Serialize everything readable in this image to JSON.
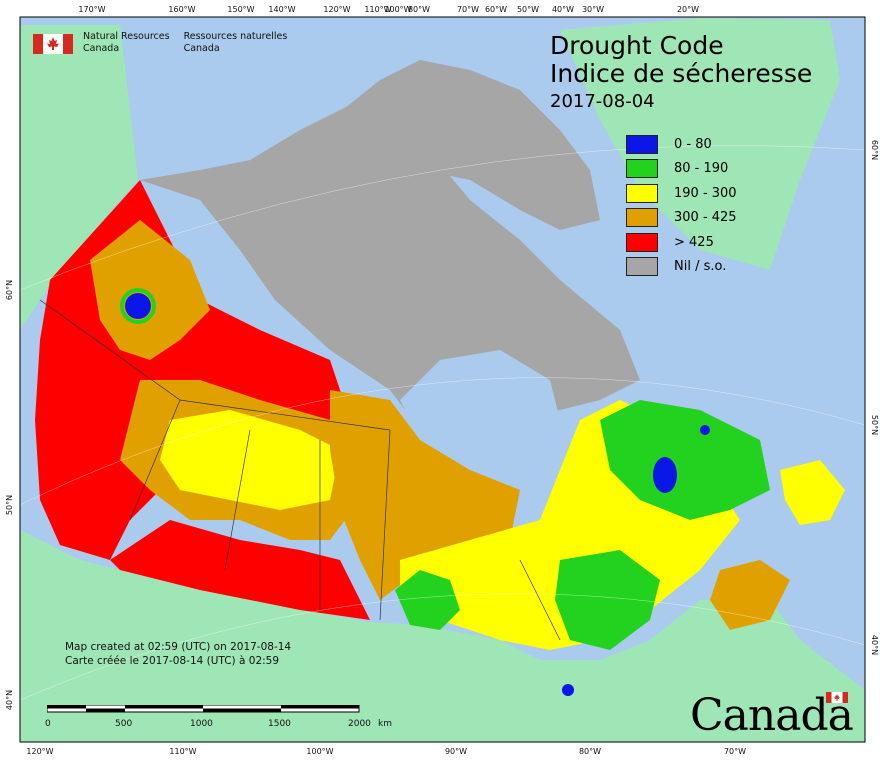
{
  "title": {
    "line1": "Drought Code",
    "line2": "Indice de sécheresse",
    "date": "2017-08-04"
  },
  "legend": [
    {
      "label": "0 - 80",
      "color": "#0a17e6"
    },
    {
      "label": "80 - 190",
      "color": "#22d21e"
    },
    {
      "label": "190 - 300",
      "color": "#ffff00"
    },
    {
      "label": "300 - 425",
      "color": "#e0a000"
    },
    {
      "label": "> 425",
      "color": "#ff0000"
    },
    {
      "label": "Nil / s.o.",
      "color": "#a6a6a6"
    }
  ],
  "agency": {
    "en_line1": "Natural Resources",
    "en_line2": "Canada",
    "fr_line1": "Ressources naturelles",
    "fr_line2": "Canada"
  },
  "credit": {
    "en": "Map created at 02:59 (UTC) on 2017-08-14",
    "fr": "Carte créée le 2017-08-14 (UTC) à 02:59"
  },
  "wordmark": "Canada",
  "scalebar": {
    "ticks": [
      "0",
      "500",
      "1000",
      "1500",
      "2000"
    ],
    "unit": "km"
  },
  "graticule": {
    "top": [
      "170°W",
      "160°W",
      "150°W",
      "140°W",
      "120°W",
      "110°W",
      "100°W",
      "80°W",
      "70°W",
      "60°W",
      "50°W",
      "40°W",
      "30°W",
      "20°W"
    ],
    "bottom": [
      "120°W",
      "110°W",
      "100°W",
      "90°W",
      "80°W",
      "70°W"
    ],
    "left": [
      "60°N",
      "50°N",
      "40°N"
    ],
    "right": [
      "60°N",
      "50°N",
      "40°N"
    ]
  },
  "map_colors": {
    "ocean": "#aacbed",
    "foreign_land": "#9fe6b6",
    "nil": "#a6a6a6"
  }
}
